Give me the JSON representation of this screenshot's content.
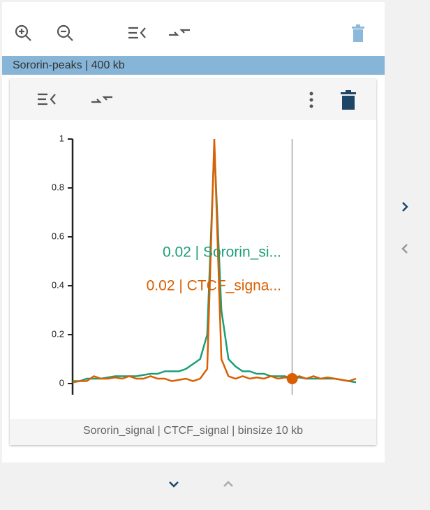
{
  "panel_title": "Sororin-peaks | 400 kb",
  "chart_data": {
    "type": "line",
    "footer": "Sororin_signal | CTCF_signal | binsize 10 kb",
    "x": [
      0,
      1,
      2,
      3,
      4,
      5,
      6,
      7,
      8,
      9,
      10,
      11,
      12,
      13,
      14,
      15,
      16,
      17,
      18,
      19,
      20,
      21,
      22,
      23,
      24,
      25,
      26,
      27,
      28,
      29,
      30,
      31,
      32,
      33,
      34,
      35,
      36,
      37,
      38,
      39,
      40
    ],
    "xlim": [
      0,
      40
    ],
    "ylim": [
      0,
      1
    ],
    "yticks": [
      0,
      0.2,
      0.4,
      0.6,
      0.8,
      1
    ],
    "cursor_x": 31,
    "hover_labels": [
      "0.02 | Sororin_si...",
      "0.02 | CTCF_signa..."
    ],
    "series": [
      {
        "name": "Sororin_signal",
        "color": "#1b9e77",
        "values": [
          0.01,
          0.01,
          0.02,
          0.02,
          0.02,
          0.025,
          0.03,
          0.03,
          0.03,
          0.03,
          0.035,
          0.04,
          0.04,
          0.05,
          0.05,
          0.05,
          0.06,
          0.08,
          0.1,
          0.2,
          0.97,
          0.3,
          0.1,
          0.07,
          0.05,
          0.05,
          0.04,
          0.04,
          0.03,
          0.03,
          0.03,
          0.02,
          0.025,
          0.02,
          0.02,
          0.02,
          0.02,
          0.02,
          0.015,
          0.01,
          0.005
        ]
      },
      {
        "name": "CTCF_signal",
        "color": "#d95f02",
        "values": [
          0.005,
          0.01,
          0.01,
          0.03,
          0.02,
          0.02,
          0.025,
          0.02,
          0.03,
          0.02,
          0.02,
          0.03,
          0.02,
          0.02,
          0.01,
          0.015,
          0.02,
          0.01,
          0.02,
          0.06,
          1,
          0.1,
          0.03,
          0.02,
          0.03,
          0.02,
          0.025,
          0.02,
          0.03,
          0.02,
          0.025,
          0.02,
          0.03,
          0.02,
          0.03,
          0.02,
          0.025,
          0.02,
          0.015,
          0.01,
          0.02
        ]
      }
    ]
  }
}
